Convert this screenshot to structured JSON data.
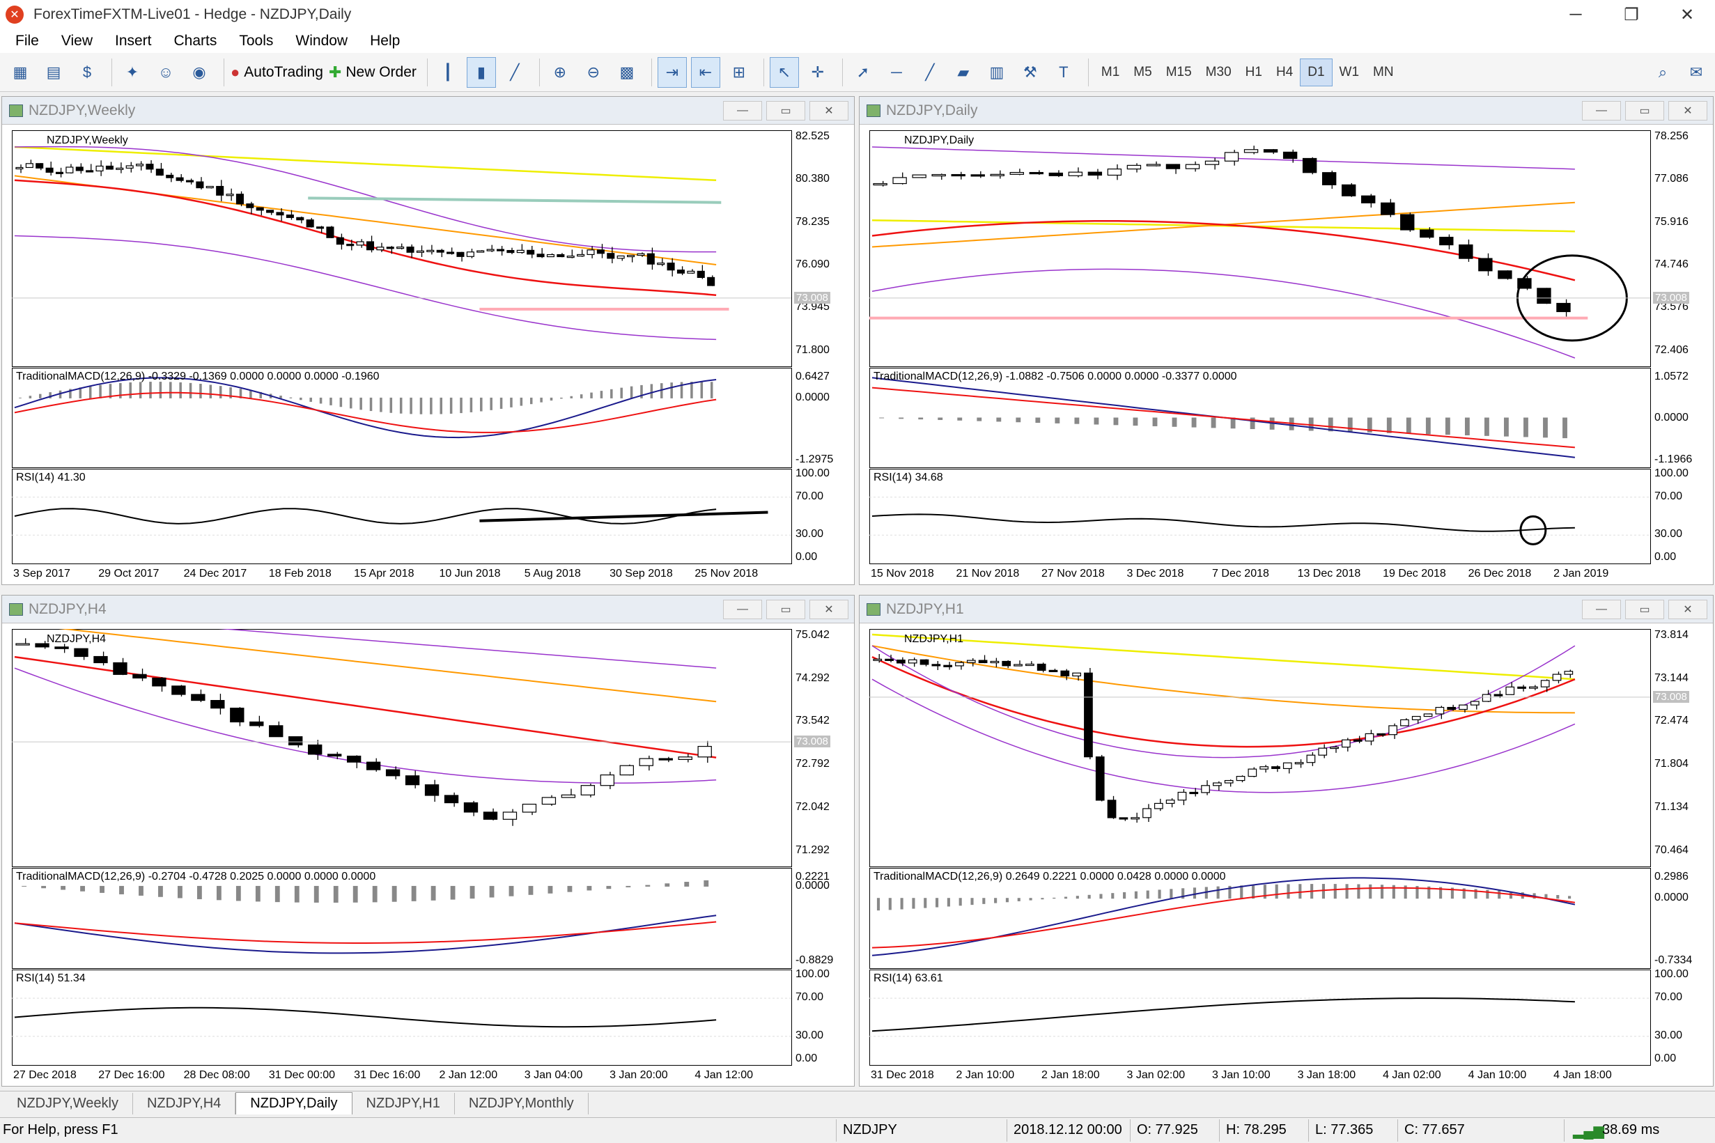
{
  "titlebar": {
    "title": "ForexTimeFXTM-Live01 - Hedge - NZDJPY,Daily",
    "minimize": "─",
    "maximize": "❐",
    "close": "✕"
  },
  "menu": [
    "File",
    "View",
    "Insert",
    "Charts",
    "Tools",
    "Window",
    "Help"
  ],
  "toolbar": {
    "autotrading": "AutoTrading",
    "new_order": "New Order",
    "timeframes": [
      "M1",
      "M5",
      "M15",
      "M30",
      "H1",
      "H4",
      "D1",
      "W1",
      "MN"
    ],
    "active_tf": "D1"
  },
  "windows": {
    "weekly": {
      "title": "NZDJPY,Weekly",
      "symbol": "NZDJPY,Weekly",
      "yprice": [
        "82.525",
        "80.380",
        "78.235",
        "76.090",
        "73.945",
        "71.800"
      ],
      "price": "73.008",
      "macd_label": "TraditionalMACD(12,26,9) -0.3329 -0.1369 0.0000 0.0000 0.0000 -0.1960",
      "macd_y": [
        "0.6427",
        "0.0000",
        "-1.2975"
      ],
      "rsi_label": "RSI(14) 41.30",
      "rsi_y": [
        "100.00",
        "70.00",
        "30.00",
        "0.00"
      ],
      "x": [
        "3 Sep 2017",
        "29 Oct 2017",
        "24 Dec 2017",
        "18 Feb 2018",
        "15 Apr 2018",
        "10 Jun 2018",
        "5 Aug 2018",
        "30 Sep 2018",
        "25 Nov 2018"
      ]
    },
    "daily": {
      "title": "NZDJPY,Daily",
      "symbol": "NZDJPY,Daily",
      "yprice": [
        "78.256",
        "77.086",
        "75.916",
        "74.746",
        "73.576",
        "72.406"
      ],
      "price": "73.008",
      "macd_label": "TraditionalMACD(12,26,9) -1.0882 -0.7506 0.0000 0.0000 -0.3377 0.0000",
      "macd_y": [
        "1.0572",
        "0.0000",
        "-1.1966"
      ],
      "rsi_label": "RSI(14) 34.68",
      "rsi_y": [
        "100.00",
        "70.00",
        "30.00",
        "0.00"
      ],
      "x": [
        "15 Nov 2018",
        "21 Nov 2018",
        "27 Nov 2018",
        "3 Dec 2018",
        "7 Dec 2018",
        "13 Dec 2018",
        "19 Dec 2018",
        "26 Dec 2018",
        "2 Jan 2019"
      ]
    },
    "h4": {
      "title": "NZDJPY,H4",
      "symbol": "NZDJPY,H4",
      "yprice": [
        "75.042",
        "74.292",
        "73.542",
        "72.792",
        "72.042",
        "71.292"
      ],
      "price": "73.008",
      "macd_label": "TraditionalMACD(12,26,9) -0.2704 -0.4728 0.2025 0.0000 0.0000 0.0000",
      "macd_y": [
        "0.2221",
        "0.0000",
        "-0.8829"
      ],
      "rsi_label": "RSI(14) 51.34",
      "rsi_y": [
        "100.00",
        "70.00",
        "30.00",
        "0.00"
      ],
      "x": [
        "27 Dec 2018",
        "27 Dec 16:00",
        "28 Dec 08:00",
        "31 Dec 00:00",
        "31 Dec 16:00",
        "2 Jan 12:00",
        "3 Jan 04:00",
        "3 Jan 20:00",
        "4 Jan 12:00"
      ]
    },
    "h1": {
      "title": "NZDJPY,H1",
      "symbol": "NZDJPY,H1",
      "yprice": [
        "73.814",
        "73.144",
        "72.474",
        "71.804",
        "71.134",
        "70.464"
      ],
      "price": "73.008",
      "macd_label": "TraditionalMACD(12,26,9) 0.2649 0.2221 0.0000 0.0428 0.0000 0.0000",
      "macd_y": [
        "0.2986",
        "0.0000",
        "-0.7334"
      ],
      "rsi_label": "RSI(14) 63.61",
      "rsi_y": [
        "100.00",
        "70.00",
        "30.00",
        "0.00"
      ],
      "x": [
        "31 Dec 2018",
        "2 Jan 10:00",
        "2 Jan 18:00",
        "3 Jan 02:00",
        "3 Jan 10:00",
        "3 Jan 18:00",
        "4 Jan 02:00",
        "4 Jan 10:00",
        "4 Jan 18:00"
      ]
    }
  },
  "tabs": [
    "NZDJPY,Weekly",
    "NZDJPY,H4",
    "NZDJPY,Daily",
    "NZDJPY,H1",
    "NZDJPY,Monthly"
  ],
  "active_tab": "NZDJPY,Daily",
  "status": {
    "help": "For Help, press F1",
    "symbol": "NZDJPY",
    "datetime": "2018.12.12 00:00",
    "open": "O: 77.925",
    "high": "H: 78.295",
    "low": "L: 77.365",
    "close": "C: 77.657",
    "ping": "38.69 ms"
  },
  "colors": {
    "ma_fast": "#ee1111",
    "ma_mid": "#ff9900",
    "ma_slow": "#eeee00",
    "bands": "#9933cc",
    "macd": "#1a1a8c",
    "signal": "#ee1111",
    "support": "#ffaab4"
  }
}
